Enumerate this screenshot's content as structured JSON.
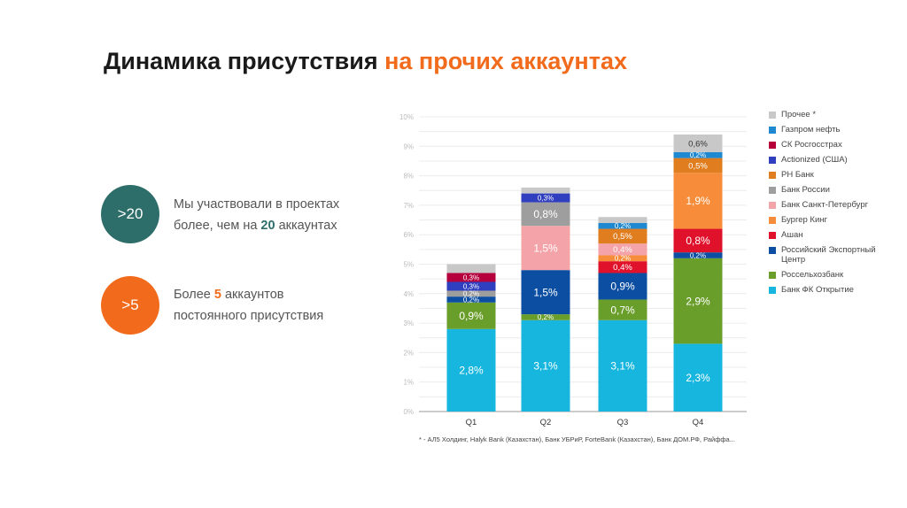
{
  "title": {
    "part1": "Динамика присутствия",
    "part2": "на прочих аккаунтах"
  },
  "stats": [
    {
      "badge": ">20",
      "color": "#2e6e6a",
      "line1": "Мы участвовали в проектах",
      "line2_pre": "более, чем на ",
      "line2_bold": "20",
      "line2_post": " аккаунтах"
    },
    {
      "badge": ">5",
      "color": "#f26a1b",
      "line1_pre": "Более ",
      "line1_bold": "5",
      "line1_post": " аккаунтов",
      "line2": "постоянного присутствия"
    }
  ],
  "accent_color": "#f26a1b",
  "chart_data": {
    "type": "bar",
    "stacked": true,
    "categories": [
      "Q1",
      "Q2",
      "Q3",
      "Q4"
    ],
    "ylim": [
      0,
      10
    ],
    "yticks": [
      "0%",
      "1%",
      "2%",
      "3%",
      "4%",
      "5%",
      "6%",
      "7%",
      "8%",
      "9%",
      "10%"
    ],
    "legend_position": "right",
    "series": [
      {
        "name": "Банк ФК Открытие",
        "color": "#17b6df",
        "values": [
          2.8,
          3.1,
          3.1,
          2.3
        ],
        "labels": [
          "2,8%",
          "3,1%",
          "3,1%",
          "2,3%"
        ]
      },
      {
        "name": "Россельхозбанк",
        "color": "#6a9e2b",
        "values": [
          0.9,
          0.2,
          0.7,
          2.9
        ],
        "labels": [
          "0,9%",
          "0,2%",
          "0,7%",
          "2,9%"
        ]
      },
      {
        "name": "Российский Экспортный Центр",
        "color": "#0b4ea2",
        "values": [
          0.2,
          1.5,
          0.9,
          0.2
        ],
        "labels": [
          "0,2%",
          "1,5%",
          "0,9%",
          "0,2%"
        ]
      },
      {
        "name": "Ашан",
        "color": "#e0112b",
        "values": [
          0,
          0,
          0.4,
          0.8
        ],
        "labels": [
          "",
          "",
          "0,4%",
          "0,8%"
        ]
      },
      {
        "name": "Бургер Кинг",
        "color": "#f78d3a",
        "values": [
          0,
          0,
          0.2,
          1.9
        ],
        "labels": [
          "",
          "",
          "0,2%",
          "1,9%"
        ]
      },
      {
        "name": "Банк Санкт-Петербург",
        "color": "#f4a4a8",
        "values": [
          0,
          1.5,
          0.4,
          0
        ],
        "labels": [
          "",
          "1,5%",
          "0,4%",
          ""
        ]
      },
      {
        "name": "Банк России",
        "color": "#9e9e9e",
        "values": [
          0.2,
          0.8,
          0,
          0
        ],
        "labels": [
          "0,2%",
          "0,8%",
          "",
          ""
        ]
      },
      {
        "name": "РН Банк",
        "color": "#e07d1e",
        "values": [
          0,
          0,
          0.5,
          0.5
        ],
        "labels": [
          "",
          "",
          "0,5%",
          "0,5%"
        ]
      },
      {
        "name": "Actionized (США)",
        "color": "#2f3fc0",
        "values": [
          0.3,
          0.3,
          0,
          0
        ],
        "labels": [
          "0,3%",
          "0,3%",
          "",
          ""
        ]
      },
      {
        "name": "СК Росгосстрах",
        "color": "#b5003c",
        "values": [
          0.3,
          0,
          0,
          0
        ],
        "labels": [
          "0,3%",
          "",
          "",
          ""
        ]
      },
      {
        "name": "Газпром нефть",
        "color": "#1e88d0",
        "values": [
          0,
          0,
          0.2,
          0.2
        ],
        "labels": [
          "",
          "",
          "0,2%",
          "0,2%"
        ]
      },
      {
        "name": "Прочее *",
        "color": "#c8c8c8",
        "values": [
          0.3,
          0.2,
          0.2,
          0.6
        ],
        "labels": [
          "",
          "",
          "",
          "0,6%"
        ]
      }
    ],
    "footnote": "* - АЛ5 Холдинг, Halyk Bank (Казахстан), Банк УБРиР, ForteBank (Казахстан), Банк ДОМ.РФ, Райффа..."
  }
}
